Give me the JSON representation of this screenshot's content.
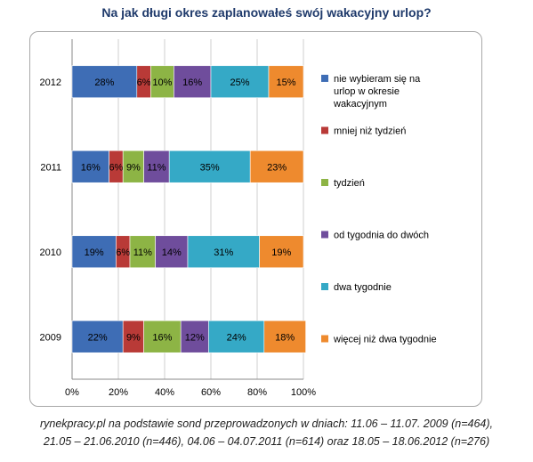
{
  "chart_data": {
    "type": "bar",
    "orientation": "horizontal",
    "stacked": true,
    "title": "Na jak długi okres zaplanowałeś swój wakacyjny urlop?",
    "categories": [
      "2012",
      "2011",
      "2010",
      "2009"
    ],
    "series": [
      {
        "name": "nie wybieram się na urlop w okresie wakacyjnym",
        "legend_lines": [
          "nie wybieram się na",
          "urlop w okresie",
          "wakacyjnym"
        ],
        "color": "#3E6DB5",
        "values": [
          28,
          16,
          19,
          22
        ],
        "labels": [
          "28%",
          "16%",
          "19%",
          "22%"
        ]
      },
      {
        "name": "mniej niż tydzień",
        "legend_lines": [
          "mniej niż tydzień"
        ],
        "color": "#B93A37",
        "values": [
          6,
          6,
          6,
          9
        ],
        "labels": [
          "6%",
          "6%",
          "6%",
          "9%"
        ]
      },
      {
        "name": "tydzień",
        "legend_lines": [
          "tydzień"
        ],
        "color": "#8DB445",
        "values": [
          10,
          9,
          11,
          16
        ],
        "labels": [
          "10%",
          "9%",
          "11%",
          "16%"
        ]
      },
      {
        "name": "od tygodnia do dwóch",
        "legend_lines": [
          "od tygodnia do dwóch"
        ],
        "color": "#6F4D9C",
        "values": [
          16,
          11,
          14,
          12
        ],
        "labels": [
          "16%",
          "11%",
          "14%",
          "12%"
        ]
      },
      {
        "name": "dwa tygodnie",
        "legend_lines": [
          "dwa tygodnie"
        ],
        "color": "#35A9C6",
        "values": [
          25,
          35,
          31,
          24
        ],
        "labels": [
          "25%",
          "35%",
          "31%",
          "24%"
        ]
      },
      {
        "name": "więcej niż dwa tygodnie",
        "legend_lines": [
          "więcej niż dwa tygodnie"
        ],
        "color": "#EE8A2E",
        "values": [
          15,
          23,
          19,
          18
        ],
        "labels": [
          "15%",
          "23%",
          "19%",
          "18%"
        ]
      }
    ],
    "xlim": [
      0,
      100
    ],
    "xticks": [
      "0%",
      "20%",
      "40%",
      "60%",
      "80%",
      "100%"
    ],
    "legend_position": "right",
    "grid": true
  },
  "footer": {
    "line1": "rynekpracy.pl na podstawie sond przeprowadzonych w dniach: 11.06 – 11.07. 2009 (n=464),",
    "line2": "21.05 – 21.06.2010  (n=446), 04.06 – 04.07.2011  (n=614) oraz 18.05 – 18.06.2012  (n=276)"
  }
}
